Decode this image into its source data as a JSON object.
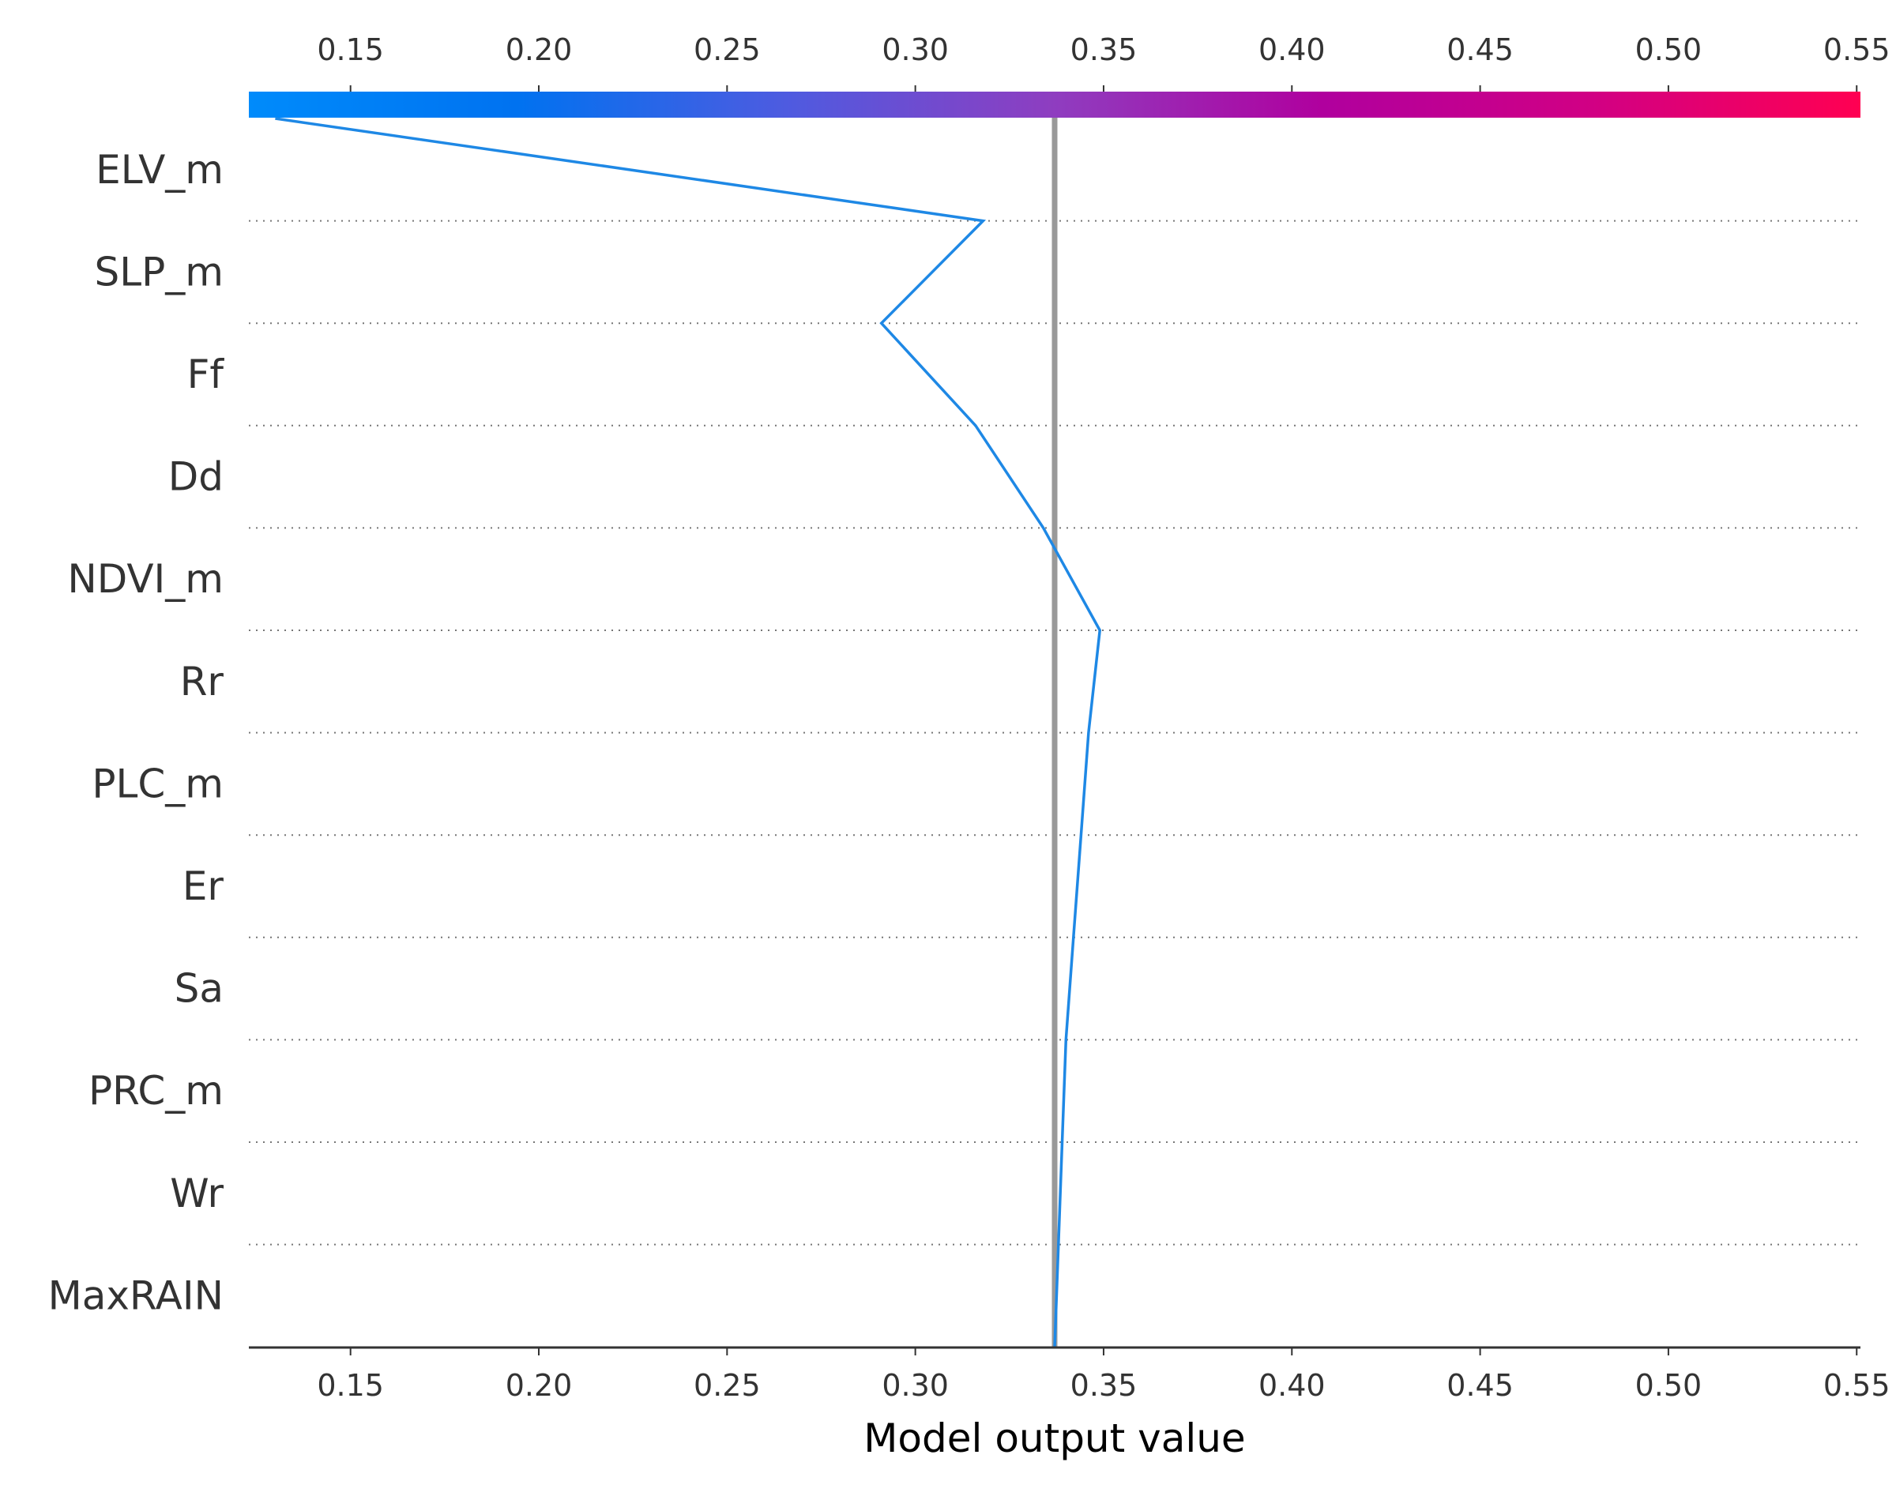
{
  "chart_data": {
    "type": "line",
    "xlabel": "Model output value",
    "xlim": [
      0.123,
      0.551
    ],
    "x_ticks": [
      "0.15",
      "0.20",
      "0.25",
      "0.30",
      "0.35",
      "0.40",
      "0.45",
      "0.50",
      "0.55"
    ],
    "x_tick_values": [
      0.15,
      0.2,
      0.25,
      0.3,
      0.35,
      0.4,
      0.45,
      0.5,
      0.55
    ],
    "base_value": 0.337,
    "features": [
      "ELV_m",
      "SLP_m",
      "Ff",
      "Dd",
      "NDVI_m",
      "Rr",
      "PLC_m",
      "Er",
      "Sa",
      "PRC_m",
      "Wr",
      "MaxRAIN"
    ],
    "series": [
      {
        "values": [
          0.13,
          0.318,
          0.291,
          0.316,
          0.334,
          0.349,
          0.346,
          0.344,
          0.342,
          0.34,
          0.339,
          0.338,
          0.337
        ]
      }
    ],
    "grid": "dotted horizontal separators",
    "colors": {
      "line": "#1E88E5",
      "base_line": "#999999",
      "axis": "#333333",
      "grid": "#777777",
      "colorbar_stops": [
        "#008BFB",
        "#0072F0",
        "#4E5BE0",
        "#8F3DC0",
        "#B0009E",
        "#D10084",
        "#FF0052"
      ]
    }
  }
}
